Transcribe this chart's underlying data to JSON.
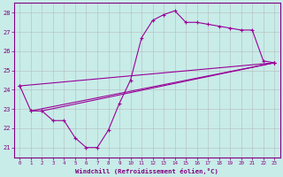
{
  "xlabel": "Windchill (Refroidissement éolien,°C)",
  "bg_color": "#c8ece8",
  "grid_color": "#b0b0b0",
  "line_color": "#990099",
  "x_hours": [
    0,
    1,
    2,
    3,
    4,
    5,
    6,
    7,
    8,
    9,
    10,
    11,
    12,
    13,
    14,
    15,
    16,
    17,
    18,
    19,
    20,
    21,
    22,
    23
  ],
  "ylim": [
    20.5,
    28.5
  ],
  "yticks": [
    21,
    22,
    23,
    24,
    25,
    26,
    27,
    28
  ],
  "y_main": [
    24.2,
    22.9,
    22.9,
    22.4,
    22.4,
    21.5,
    21.0,
    21.0,
    21.9,
    23.3,
    24.5,
    26.7,
    27.6,
    27.9,
    28.1,
    27.5,
    27.5,
    27.4,
    27.3,
    27.2,
    27.1,
    27.1,
    25.5,
    25.4
  ],
  "straight_lines": [
    {
      "x": [
        0,
        23
      ],
      "y": [
        24.2,
        25.4
      ]
    },
    {
      "x": [
        1,
        23
      ],
      "y": [
        22.9,
        25.4
      ]
    },
    {
      "x": [
        2,
        23
      ],
      "y": [
        22.9,
        25.4
      ]
    }
  ]
}
